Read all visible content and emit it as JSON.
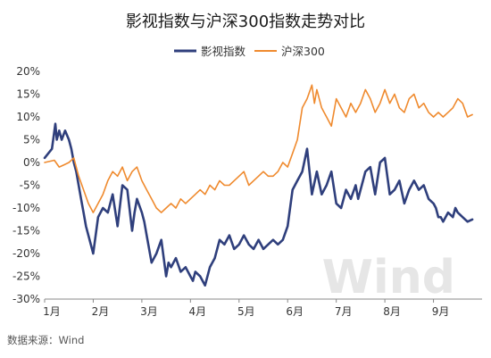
{
  "chart_data": {
    "type": "line",
    "title": "影视指数与沪深300指数走势对比",
    "source": "数据来源：Wind",
    "watermark": "Wind",
    "legend_position": "top",
    "grid": false,
    "x_ticks": [
      "1月",
      "2月",
      "3月",
      "4月",
      "5月",
      "6月",
      "7月",
      "8月",
      "9月"
    ],
    "x_range": [
      0,
      9
    ],
    "y_ticks": [
      "20%",
      "15%",
      "10%",
      "5%",
      "0%",
      "-5%",
      "-10%",
      "-15%",
      "-20%",
      "-25%",
      "-30%"
    ],
    "ylim": [
      -30,
      20
    ],
    "series": [
      {
        "name": "影视指数",
        "color": "#2f3f7c",
        "x": [
          0,
          0.15,
          0.22,
          0.25,
          0.3,
          0.35,
          0.42,
          0.5,
          0.55,
          0.6,
          0.65,
          0.7,
          0.75,
          0.8,
          0.85,
          0.9,
          1.0,
          1.1,
          1.2,
          1.3,
          1.4,
          1.5,
          1.6,
          1.7,
          1.8,
          1.85,
          1.9,
          2.0,
          2.05,
          2.1,
          2.2,
          2.3,
          2.4,
          2.5,
          2.55,
          2.6,
          2.7,
          2.8,
          2.9,
          3.0,
          3.05,
          3.1,
          3.2,
          3.3,
          3.4,
          3.5,
          3.6,
          3.7,
          3.8,
          3.9,
          4.0,
          4.1,
          4.2,
          4.3,
          4.4,
          4.5,
          4.6,
          4.7,
          4.8,
          4.9,
          5.0,
          5.1,
          5.2,
          5.3,
          5.4,
          5.5,
          5.6,
          5.7,
          5.8,
          5.9,
          6.0,
          6.1,
          6.2,
          6.3,
          6.4,
          6.45,
          6.5,
          6.55,
          6.6,
          6.7,
          6.8,
          6.9,
          7.0,
          7.1,
          7.2,
          7.3,
          7.4,
          7.5,
          7.6,
          7.7,
          7.8,
          7.9,
          8.0,
          8.05,
          8.1,
          8.15,
          8.2,
          8.3,
          8.4,
          8.45,
          8.5,
          8.6,
          8.7,
          8.8
        ],
        "values": [
          1,
          3,
          8.5,
          5,
          7,
          5,
          7,
          5,
          3,
          0,
          -2,
          -5,
          -8,
          -11,
          -14,
          -16,
          -20,
          -12,
          -10,
          -11,
          -7,
          -14,
          -5,
          -6,
          -15,
          -11,
          -8,
          -11,
          -13,
          -16,
          -22,
          -20,
          -17,
          -25,
          -22,
          -23,
          -21,
          -24,
          -23,
          -25,
          -26,
          -24,
          -25,
          -27,
          -23,
          -21,
          -17,
          -18,
          -16,
          -19,
          -18,
          -16,
          -18,
          -19,
          -17,
          -19,
          -18,
          -17,
          -18,
          -17,
          -14,
          -6,
          -4,
          -2,
          3,
          -7,
          -2,
          -7,
          -5,
          -2,
          -9,
          -10,
          -6,
          -8,
          -5,
          -8,
          -6,
          -4,
          -2,
          -1,
          -7,
          0,
          1,
          -7,
          -6,
          -4,
          -9,
          -6,
          -4,
          -6,
          -5,
          -8,
          -9,
          -10,
          -12,
          -12,
          -13,
          -11,
          -12,
          -10,
          -11,
          -12,
          -13,
          -12.5
        ]
      },
      {
        "name": "沪深300",
        "color": "#ef8a2e",
        "x": [
          0,
          0.2,
          0.3,
          0.4,
          0.5,
          0.6,
          0.7,
          0.8,
          0.9,
          1.0,
          1.1,
          1.2,
          1.3,
          1.4,
          1.5,
          1.6,
          1.7,
          1.8,
          1.9,
          2.0,
          2.1,
          2.2,
          2.3,
          2.4,
          2.5,
          2.6,
          2.7,
          2.8,
          2.9,
          3.0,
          3.1,
          3.2,
          3.3,
          3.4,
          3.5,
          3.6,
          3.7,
          3.8,
          3.9,
          4.0,
          4.1,
          4.2,
          4.3,
          4.4,
          4.5,
          4.6,
          4.7,
          4.8,
          4.9,
          5.0,
          5.1,
          5.2,
          5.3,
          5.4,
          5.5,
          5.55,
          5.6,
          5.7,
          5.8,
          5.9,
          6.0,
          6.1,
          6.2,
          6.3,
          6.4,
          6.5,
          6.6,
          6.7,
          6.8,
          6.9,
          7.0,
          7.1,
          7.2,
          7.3,
          7.4,
          7.5,
          7.6,
          7.7,
          7.8,
          7.9,
          8.0,
          8.1,
          8.2,
          8.3,
          8.4,
          8.5,
          8.6,
          8.7,
          8.8
        ],
        "values": [
          0,
          0.5,
          -1,
          -0.5,
          0,
          1,
          -3,
          -6,
          -9,
          -11,
          -9,
          -7,
          -4,
          -2,
          -3,
          -1,
          -4,
          -2,
          -1,
          -4,
          -6,
          -8,
          -10,
          -11,
          -10,
          -9,
          -10,
          -8,
          -9,
          -8,
          -7,
          -6,
          -7,
          -5,
          -6,
          -4,
          -5,
          -5,
          -4,
          -3,
          -2,
          -5,
          -4,
          -3,
          -2,
          -3,
          -3,
          -2,
          0,
          -1,
          2,
          5,
          12,
          14,
          17,
          13,
          16,
          12,
          10,
          8,
          14,
          12,
          10,
          13,
          11,
          13,
          16,
          14,
          11,
          13,
          16,
          13,
          15,
          12,
          11,
          14,
          15,
          12,
          13,
          11,
          10,
          11,
          10,
          11,
          12,
          14,
          13,
          10,
          10.5
        ]
      }
    ]
  }
}
